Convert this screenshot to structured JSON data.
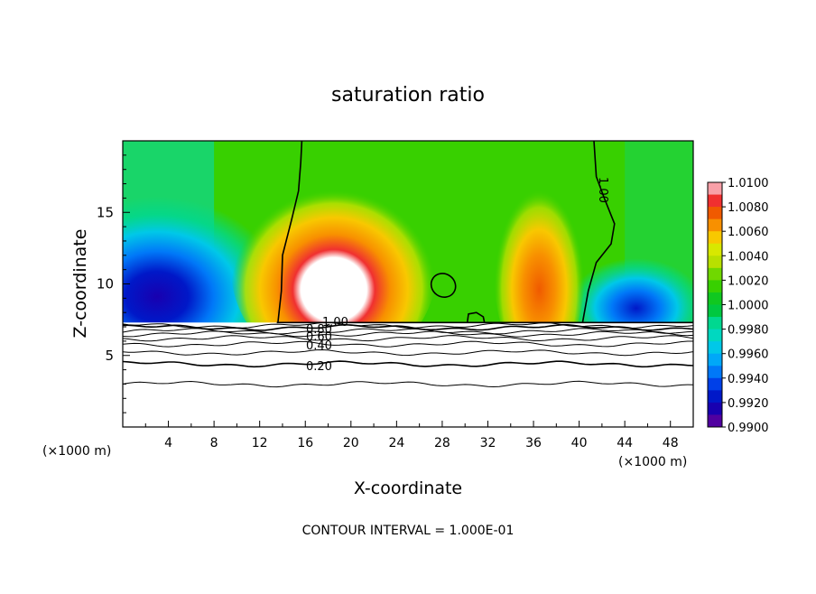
{
  "chart_data": {
    "type": "heatmap",
    "title": "saturation ratio",
    "xlabel": "X-coordinate",
    "ylabel": "Z-coordinate",
    "x_unit_label": "(×1000 m)",
    "xlim": [
      0,
      50
    ],
    "ylim": [
      0,
      20
    ],
    "x_ticks": [
      4,
      8,
      12,
      16,
      20,
      24,
      28,
      32,
      36,
      40,
      44,
      48
    ],
    "y_ticks": [
      5,
      10,
      15
    ],
    "footer": "CONTOUR INTERVAL = 1.000E-01",
    "colorbar": {
      "labels": [
        "1.0100",
        "1.0080",
        "1.0060",
        "1.0040",
        "1.0020",
        "1.0000",
        "0.9980",
        "0.9960",
        "0.9940",
        "0.9920",
        "0.9900"
      ],
      "colors": [
        "#f8a0a8",
        "#f03030",
        "#f05a00",
        "#f89000",
        "#f8c800",
        "#d8e800",
        "#b8e000",
        "#70d800",
        "#38d000",
        "#10c820",
        "#00c840",
        "#00d890",
        "#00d8c0",
        "#00c8e8",
        "#00a8f8",
        "#0078f8",
        "#0040e8",
        "#0018c8",
        "#1800b0",
        "#5000a0"
      ]
    },
    "contour_labels": [
      "1.00",
      "0.80",
      "0.60",
      "0.40",
      "0.20"
    ],
    "contour_levels": [
      {
        "value": 0.1,
        "z": 3.0
      },
      {
        "value": 0.2,
        "z": 4.4
      },
      {
        "value": 0.3,
        "z": 5.2
      },
      {
        "value": 0.4,
        "z": 5.8
      },
      {
        "value": 0.5,
        "z": 6.2
      },
      {
        "value": 0.6,
        "z": 6.5
      },
      {
        "value": 0.7,
        "z": 6.7
      },
      {
        "value": 0.8,
        "z": 6.95
      },
      {
        "value": 0.9,
        "z": 7.1
      }
    ],
    "cloud_base_z": 7.3,
    "highlights": [
      {
        "name": "left-cloud",
        "x": 18.5,
        "z": 11.0,
        "value": 1.01
      },
      {
        "name": "right-cloud",
        "x": 36.5,
        "z": 11.0,
        "value": 1.006
      },
      {
        "name": "left-dry",
        "x": 3.0,
        "z": 10.5,
        "value": 0.993
      },
      {
        "name": "right-dry",
        "x": 45.0,
        "z": 9.0,
        "value": 0.994
      }
    ]
  }
}
